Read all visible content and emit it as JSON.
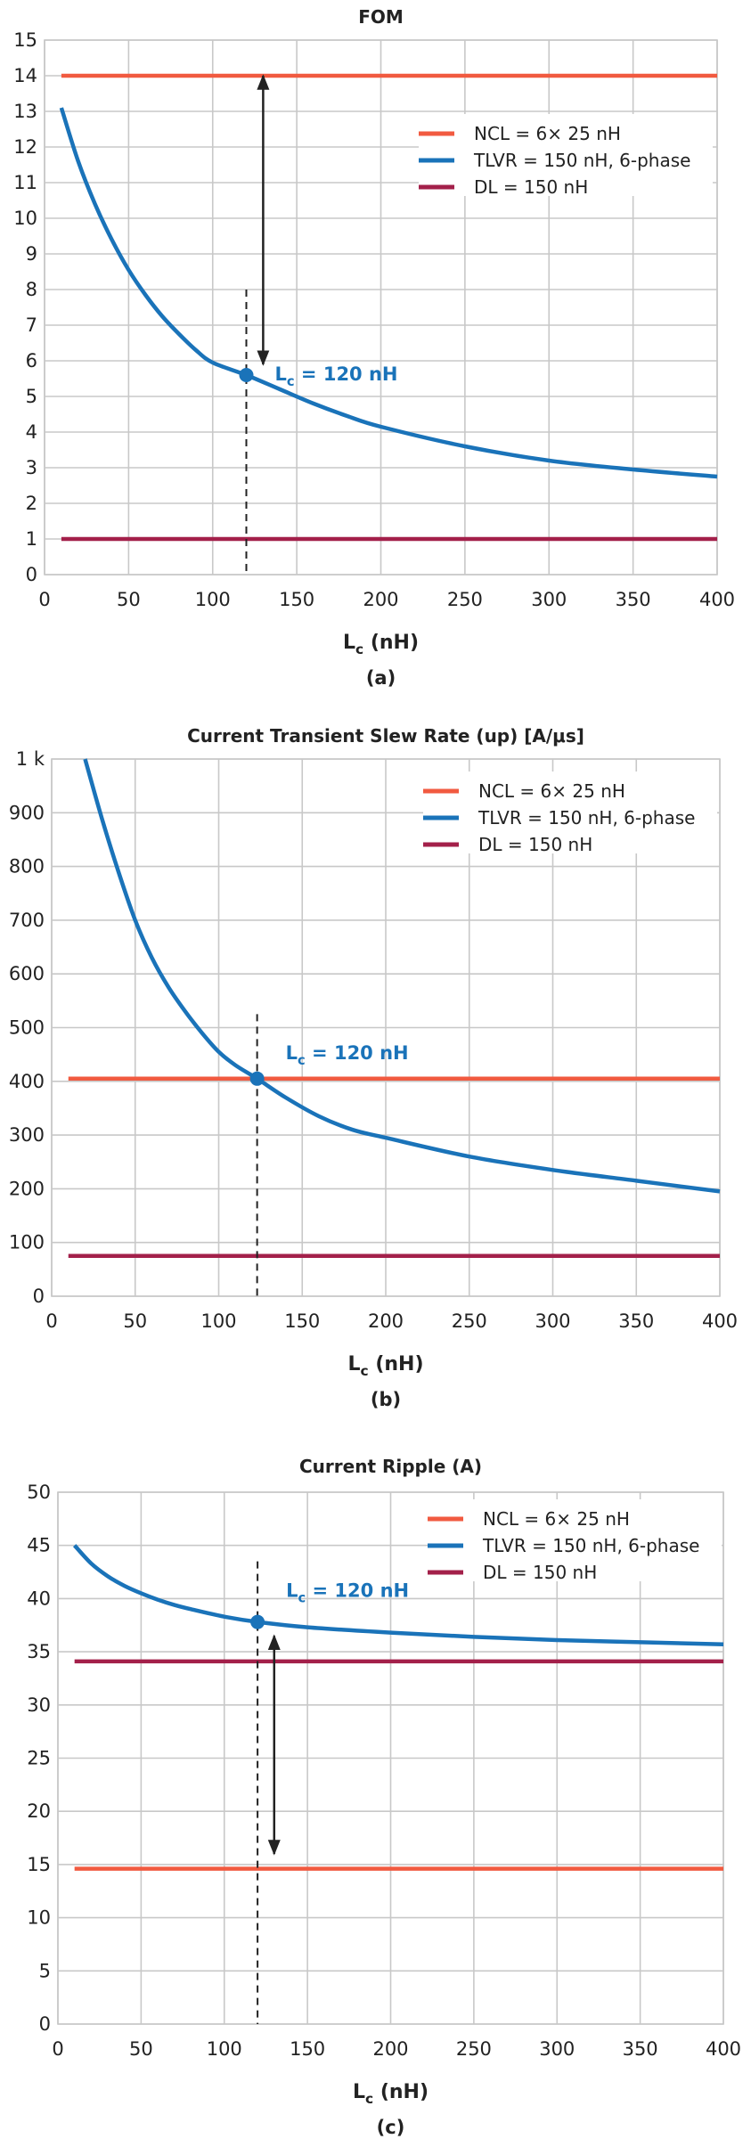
{
  "chart_data": [
    {
      "type": "line",
      "title": "FOM",
      "xlabel": "L",
      "xlabel_sub": "c",
      "xlabel_unit": " (nH)",
      "caption": "(a)",
      "xlim": [
        0,
        400
      ],
      "ylim": [
        0,
        15
      ],
      "xticks": [
        "0",
        "50",
        "100",
        "150",
        "200",
        "250",
        "300",
        "350",
        "400"
      ],
      "yticks": [
        "0",
        "1",
        "2",
        "3",
        "4",
        "5",
        "6",
        "7",
        "8",
        "9",
        "10",
        "11",
        "12",
        "13",
        "14",
        "15"
      ],
      "legend": [
        "NCL = 6× 25 nH",
        "TLVR = 150 nH, 6-phase",
        "DL = 150 nH"
      ],
      "series": [
        {
          "name": "NCL = 6× 25 nH",
          "kind": "constant",
          "y": 14,
          "x_range": [
            10,
            400
          ]
        },
        {
          "name": "TLVR = 150 nH, 6-phase",
          "kind": "curve",
          "x": [
            10,
            20,
            30,
            40,
            50,
            60,
            70,
            80,
            90,
            100,
            120,
            140,
            160,
            180,
            200,
            250,
            300,
            350,
            400
          ],
          "y": [
            13.1,
            11.6,
            10.4,
            9.4,
            8.55,
            7.85,
            7.25,
            6.75,
            6.3,
            5.95,
            5.6,
            5.2,
            4.8,
            4.45,
            4.15,
            3.6,
            3.2,
            2.95,
            2.75
          ]
        },
        {
          "name": "DL = 150 nH",
          "kind": "constant",
          "y": 1,
          "x_range": [
            10,
            400
          ]
        }
      ],
      "marker": {
        "x": 120,
        "y": 5.6,
        "label": "L",
        "label_sub": "c",
        "label_rest": " = 120 nH",
        "dash_top": 8
      },
      "arrow": {
        "x": 130,
        "y_from": 14,
        "y_to": 5.9
      }
    },
    {
      "type": "line",
      "title": "Current Transient Slew Rate (up) [A/μs]",
      "xlabel": "L",
      "xlabel_sub": "c",
      "xlabel_unit": " (nH)",
      "caption": "(b)",
      "xlim": [
        0,
        400
      ],
      "ylim": [
        0,
        1000
      ],
      "xticks": [
        "0",
        "50",
        "100",
        "150",
        "200",
        "250",
        "300",
        "350",
        "400"
      ],
      "yticks": [
        "0",
        "100",
        "200",
        "300",
        "400",
        "500",
        "600",
        "700",
        "800",
        "900",
        "1 k"
      ],
      "legend": [
        "NCL = 6× 25 nH",
        "TLVR = 150 nH, 6-phase",
        "DL = 150 nH"
      ],
      "series": [
        {
          "name": "NCL = 6× 25 nH",
          "kind": "constant",
          "y": 405,
          "x_range": [
            10,
            400
          ]
        },
        {
          "name": "TLVR = 150 nH, 6-phase",
          "kind": "curve",
          "x": [
            20,
            30,
            40,
            50,
            60,
            70,
            80,
            90,
            100,
            110,
            123,
            140,
            160,
            180,
            200,
            250,
            300,
            350,
            400
          ],
          "y": [
            1000,
            890,
            790,
            700,
            630,
            575,
            530,
            490,
            455,
            430,
            405,
            370,
            335,
            310,
            295,
            260,
            235,
            215,
            195
          ]
        },
        {
          "name": "DL = 150 nH",
          "kind": "constant",
          "y": 75,
          "x_range": [
            10,
            400
          ]
        }
      ],
      "marker": {
        "x": 123,
        "y": 405,
        "label": "L",
        "label_sub": "c",
        "label_rest": " = 120 nH",
        "dash_top": 525
      }
    },
    {
      "type": "line",
      "title": "Current Ripple (A)",
      "xlabel": "L",
      "xlabel_sub": "c",
      "xlabel_unit": " (nH)",
      "caption": "(c)",
      "xlim": [
        0,
        400
      ],
      "ylim": [
        0,
        50
      ],
      "xticks": [
        "0",
        "50",
        "100",
        "150",
        "200",
        "250",
        "300",
        "350",
        "400"
      ],
      "yticks": [
        "0",
        "5",
        "10",
        "15",
        "20",
        "25",
        "30",
        "35",
        "40",
        "45",
        "50"
      ],
      "legend": [
        "NCL = 6× 25 nH",
        "TLVR = 150 nH, 6-phase",
        "DL = 150 nH"
      ],
      "series": [
        {
          "name": "NCL = 6× 25 nH",
          "kind": "constant",
          "y": 14.6,
          "x_range": [
            10,
            400
          ]
        },
        {
          "name": "TLVR = 150 nH, 6-phase",
          "kind": "curve",
          "x": [
            10,
            20,
            30,
            40,
            50,
            60,
            70,
            80,
            100,
            120,
            150,
            200,
            250,
            300,
            350,
            400
          ],
          "y": [
            45,
            43.3,
            42.1,
            41.2,
            40.5,
            39.9,
            39.4,
            39,
            38.3,
            37.8,
            37.3,
            36.8,
            36.4,
            36.1,
            35.9,
            35.7
          ]
        },
        {
          "name": "DL = 150 nH",
          "kind": "constant",
          "y": 34.1,
          "x_range": [
            10,
            400
          ]
        }
      ],
      "marker": {
        "x": 120,
        "y": 37.8,
        "label": "L",
        "label_sub": "c",
        "label_rest": " = 120 nH",
        "dash_top": 43.5
      },
      "arrow": {
        "x": 130,
        "y_from": 36.5,
        "y_to": 16
      }
    }
  ],
  "colors": {
    "ncl": "#f15a40",
    "tlvr": "#1a73b9",
    "dl": "#a3204a",
    "text": "#222222",
    "grid": "#c8c8c8"
  }
}
